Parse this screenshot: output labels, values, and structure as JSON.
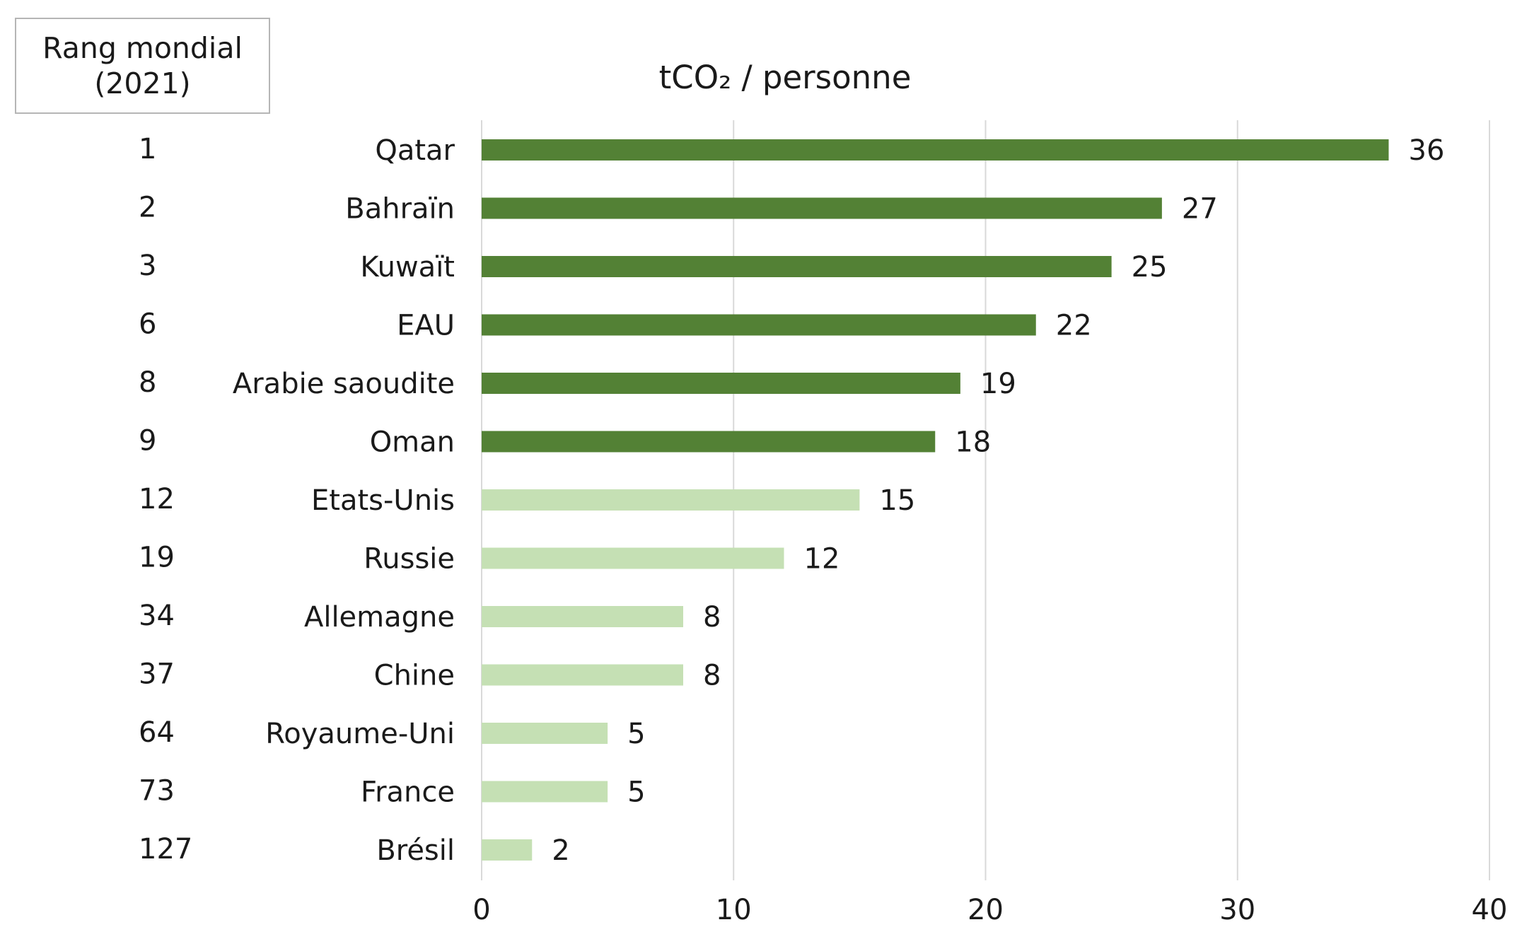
{
  "rank_header": {
    "line1": "Rang mondial",
    "line2": "(2021)"
  },
  "chart_data": {
    "type": "bar",
    "orientation": "horizontal",
    "title": "tCO₂ / personne",
    "xlim": [
      0,
      40
    ],
    "xticks": [
      0,
      10,
      20,
      30,
      40
    ],
    "grid": "vertical",
    "categories": [
      "Qatar",
      "Bahraïn",
      "Kuwaït",
      "EAU",
      "Arabie saoudite",
      "Oman",
      "Etats-Unis",
      "Russie",
      "Allemagne",
      "Chine",
      "Royaume-Uni",
      "France",
      "Brésil"
    ],
    "values": [
      36,
      27,
      25,
      22,
      19,
      18,
      15,
      12,
      8,
      8,
      5,
      5,
      2
    ],
    "ranks": [
      "1",
      "2",
      "3",
      "6",
      "8",
      "9",
      "12",
      "19",
      "34",
      "37",
      "64",
      "73",
      "127"
    ],
    "groups": [
      "gulf",
      "gulf",
      "gulf",
      "gulf",
      "gulf",
      "gulf",
      "other",
      "other",
      "other",
      "other",
      "other",
      "other",
      "other"
    ],
    "colors": {
      "gulf": "#538135",
      "other": "#c5e0b4",
      "grid": "#d9d9d9"
    }
  }
}
